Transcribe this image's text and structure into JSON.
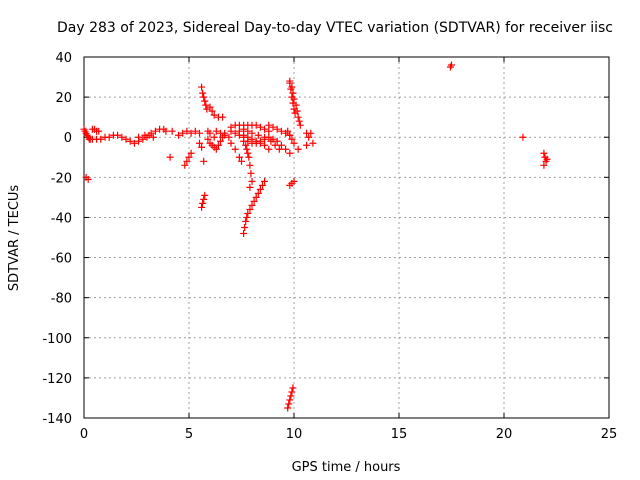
{
  "chart_data": {
    "type": "scatter",
    "title": "Day 283 of 2023, Sidereal Day-to-day VTEC variation (SDTVAR) for receiver iisc",
    "xlabel": "GPS time / hours",
    "ylabel": "SDTVAR / TECUs",
    "xlim": [
      0,
      25
    ],
    "ylim": [
      -140,
      40
    ],
    "xticks": [
      0,
      5,
      10,
      15,
      20,
      25
    ],
    "yticks": [
      40,
      20,
      0,
      -20,
      -40,
      -60,
      -80,
      -100,
      -120,
      -140
    ],
    "grid": true,
    "marker": "plus",
    "color": "#ff0000",
    "series": [
      {
        "points": [
          [
            0.0,
            4
          ],
          [
            0.05,
            3
          ],
          [
            0.1,
            2
          ],
          [
            0.15,
            1
          ],
          [
            0.2,
            0
          ],
          [
            0.25,
            -1
          ],
          [
            0.3,
            -1
          ],
          [
            0.4,
            4
          ],
          [
            0.5,
            4
          ],
          [
            0.6,
            3
          ],
          [
            0.7,
            3
          ],
          [
            0.2,
            -21
          ],
          [
            0.1,
            -20
          ],
          [
            0.4,
            -1
          ],
          [
            0.6,
            -1
          ],
          [
            0.8,
            -1
          ],
          [
            1.0,
            0
          ],
          [
            1.2,
            0
          ],
          [
            1.4,
            1
          ],
          [
            1.6,
            1
          ],
          [
            1.8,
            0
          ],
          [
            2.0,
            -1
          ],
          [
            2.2,
            -2
          ],
          [
            2.4,
            -3
          ],
          [
            2.6,
            -2
          ],
          [
            2.8,
            -1
          ],
          [
            3.0,
            0
          ],
          [
            3.2,
            2
          ],
          [
            3.4,
            3
          ],
          [
            3.6,
            4
          ],
          [
            3.8,
            4
          ],
          [
            3.9,
            3
          ],
          [
            2.6,
            0
          ],
          [
            2.9,
            1
          ],
          [
            3.1,
            1
          ],
          [
            3.3,
            0
          ],
          [
            4.1,
            -10
          ],
          [
            4.2,
            3
          ],
          [
            4.5,
            1
          ],
          [
            4.7,
            2
          ],
          [
            4.9,
            3
          ],
          [
            5.1,
            2
          ],
          [
            5.3,
            3
          ],
          [
            5.5,
            2
          ],
          [
            4.8,
            -14
          ],
          [
            4.9,
            -12
          ],
          [
            5.0,
            -10
          ],
          [
            5.1,
            -8
          ],
          [
            5.6,
            25
          ],
          [
            5.65,
            22
          ],
          [
            5.7,
            20
          ],
          [
            5.75,
            18
          ],
          [
            5.8,
            16
          ],
          [
            5.85,
            14
          ],
          [
            5.6,
            -35
          ],
          [
            5.65,
            -33
          ],
          [
            5.7,
            -31
          ],
          [
            5.75,
            -29
          ],
          [
            5.5,
            -3
          ],
          [
            5.6,
            -5
          ],
          [
            5.7,
            -12
          ],
          [
            5.9,
            -1
          ],
          [
            6.0,
            -3
          ],
          [
            6.1,
            -4
          ],
          [
            6.2,
            -5
          ],
          [
            6.3,
            -6
          ],
          [
            6.4,
            -4
          ],
          [
            6.5,
            -2
          ],
          [
            6.6,
            0
          ],
          [
            6.7,
            2
          ],
          [
            6.0,
            15
          ],
          [
            6.1,
            13
          ],
          [
            6.2,
            11
          ],
          [
            6.4,
            10
          ],
          [
            6.6,
            10
          ],
          [
            6.3,
            3
          ],
          [
            6.5,
            2
          ],
          [
            6.7,
            1
          ],
          [
            6.9,
            0
          ],
          [
            5.9,
            3
          ],
          [
            6.0,
            2
          ],
          [
            6.2,
            0
          ],
          [
            7.0,
            5
          ],
          [
            7.2,
            6
          ],
          [
            7.4,
            6
          ],
          [
            7.6,
            6
          ],
          [
            7.8,
            6
          ],
          [
            8.0,
            6
          ],
          [
            8.2,
            6
          ],
          [
            8.4,
            5
          ],
          [
            8.6,
            4
          ],
          [
            8.8,
            3
          ],
          [
            8.8,
            6
          ],
          [
            9.0,
            5
          ],
          [
            9.2,
            4
          ],
          [
            9.4,
            3
          ],
          [
            9.6,
            2
          ],
          [
            9.8,
            1
          ],
          [
            7.0,
            3
          ],
          [
            7.2,
            2
          ],
          [
            7.4,
            1
          ],
          [
            7.6,
            1
          ],
          [
            7.8,
            0
          ],
          [
            8.0,
            -1
          ],
          [
            8.2,
            -2
          ],
          [
            8.4,
            -3
          ],
          [
            8.6,
            -4
          ],
          [
            8.8,
            -6
          ],
          [
            7.6,
            0
          ],
          [
            7.8,
            -2
          ],
          [
            8.0,
            -3
          ],
          [
            8.2,
            -3
          ],
          [
            8.4,
            -2
          ],
          [
            8.6,
            -1
          ],
          [
            8.8,
            0
          ],
          [
            9.0,
            -1
          ],
          [
            9.2,
            -2
          ],
          [
            9.4,
            -4
          ],
          [
            9.6,
            -6
          ],
          [
            9.8,
            -8
          ],
          [
            7.4,
            3
          ],
          [
            7.6,
            4
          ],
          [
            7.8,
            3
          ],
          [
            8.0,
            2
          ],
          [
            8.3,
            1
          ],
          [
            8.6,
            0
          ],
          [
            8.9,
            -2
          ],
          [
            9.1,
            -4
          ],
          [
            9.3,
            -6
          ],
          [
            7.6,
            -2
          ],
          [
            7.7,
            -4
          ],
          [
            7.75,
            -6
          ],
          [
            7.8,
            -8
          ],
          [
            7.85,
            -10
          ],
          [
            7.9,
            -14
          ],
          [
            7.95,
            -18
          ],
          [
            8.0,
            -22
          ],
          [
            7.9,
            -25
          ],
          [
            7.6,
            -48
          ],
          [
            7.65,
            -45
          ],
          [
            7.7,
            -42
          ],
          [
            7.75,
            -40
          ],
          [
            7.8,
            -38
          ],
          [
            7.9,
            -36
          ],
          [
            8.0,
            -34
          ],
          [
            8.1,
            -32
          ],
          [
            8.2,
            -30
          ],
          [
            8.3,
            -28
          ],
          [
            8.4,
            -26
          ],
          [
            8.5,
            -24
          ],
          [
            8.6,
            -22
          ],
          [
            7.0,
            -3
          ],
          [
            7.2,
            -6
          ],
          [
            7.4,
            -10
          ],
          [
            7.5,
            -12
          ],
          [
            9.8,
            28
          ],
          [
            9.9,
            25
          ],
          [
            9.95,
            22
          ],
          [
            10.0,
            19
          ],
          [
            10.1,
            16
          ],
          [
            10.15,
            13
          ],
          [
            10.2,
            10
          ],
          [
            10.25,
            8
          ],
          [
            10.3,
            6
          ],
          [
            9.8,
            27
          ],
          [
            9.85,
            24
          ],
          [
            9.9,
            20
          ],
          [
            9.95,
            17
          ],
          [
            10.0,
            14
          ],
          [
            10.05,
            12
          ],
          [
            9.7,
            3
          ],
          [
            9.8,
            1
          ],
          [
            9.9,
            -1
          ],
          [
            10.0,
            -3
          ],
          [
            10.2,
            -6
          ],
          [
            9.8,
            -24
          ],
          [
            9.9,
            -23
          ],
          [
            10.0,
            -22
          ],
          [
            9.7,
            -135
          ],
          [
            9.75,
            -133
          ],
          [
            9.8,
            -131
          ],
          [
            9.85,
            -129
          ],
          [
            9.9,
            -127
          ],
          [
            9.95,
            -125
          ],
          [
            10.6,
            2
          ],
          [
            10.8,
            2
          ],
          [
            10.7,
            0
          ],
          [
            10.9,
            -3
          ],
          [
            10.6,
            -4
          ],
          [
            17.5,
            36
          ],
          [
            17.45,
            35
          ],
          [
            20.9,
            0
          ],
          [
            21.9,
            -8
          ],
          [
            21.95,
            -10
          ],
          [
            22.0,
            -12
          ],
          [
            21.9,
            -14
          ],
          [
            22.05,
            -11
          ]
        ]
      }
    ]
  }
}
